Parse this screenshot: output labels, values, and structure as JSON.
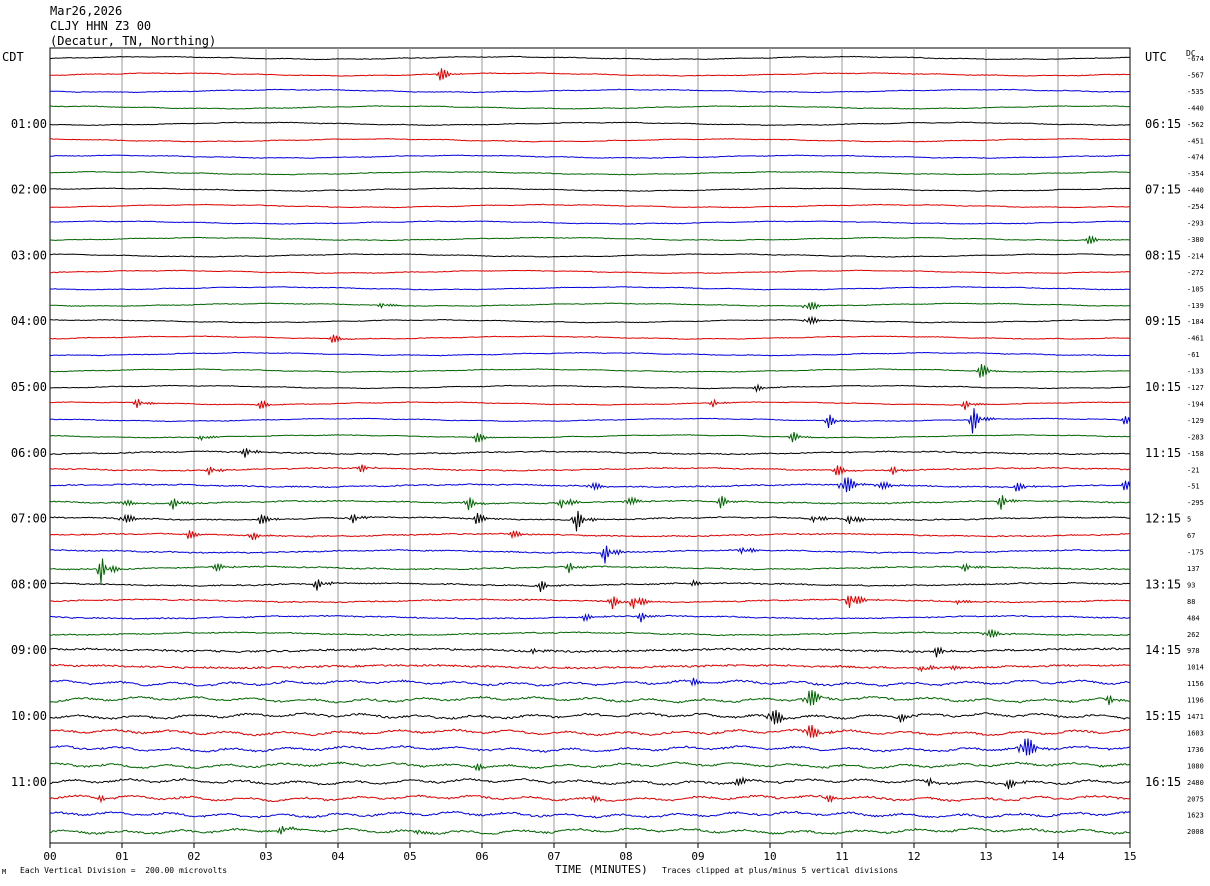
{
  "header": {
    "date": "Mar26,2026",
    "station": "CLJY HHN Z3 00",
    "location": "(Decatur, TN, Northing)"
  },
  "labels": {
    "left_tz": "CDT",
    "right_tz": "UTC",
    "right_col": "DC"
  },
  "colors": {
    "cycle": [
      "#000000",
      "#dd0000",
      "#0000dd",
      "#006400"
    ],
    "grid": "#999999"
  },
  "chart_data": {
    "type": "line",
    "title": "",
    "xlabel": "TIME (MINUTES)",
    "ylabel": "",
    "xlim": [
      0,
      15
    ],
    "x_ticks": [
      "00",
      "01",
      "02",
      "03",
      "04",
      "05",
      "06",
      "07",
      "08",
      "09",
      "10",
      "11",
      "12",
      "13",
      "14",
      "15"
    ],
    "trace_count": 48,
    "left_time_labels": [
      {
        "trace": 4,
        "label": "01:00"
      },
      {
        "trace": 8,
        "label": "02:00"
      },
      {
        "trace": 12,
        "label": "03:00"
      },
      {
        "trace": 16,
        "label": "04:00"
      },
      {
        "trace": 20,
        "label": "05:00"
      },
      {
        "trace": 24,
        "label": "06:00"
      },
      {
        "trace": 28,
        "label": "07:00"
      },
      {
        "trace": 32,
        "label": "08:00"
      },
      {
        "trace": 36,
        "label": "09:00"
      },
      {
        "trace": 40,
        "label": "10:00"
      },
      {
        "trace": 44,
        "label": "11:00"
      }
    ],
    "right_time_labels": [
      {
        "trace": 4,
        "label": "06:15"
      },
      {
        "trace": 8,
        "label": "07:15"
      },
      {
        "trace": 12,
        "label": "08:15"
      },
      {
        "trace": 16,
        "label": "09:15"
      },
      {
        "trace": 20,
        "label": "10:15"
      },
      {
        "trace": 24,
        "label": "11:15"
      },
      {
        "trace": 28,
        "label": "12:15"
      },
      {
        "trace": 32,
        "label": "13:15"
      },
      {
        "trace": 36,
        "label": "14:15"
      },
      {
        "trace": 40,
        "label": "15:15"
      },
      {
        "trace": 44,
        "label": "16:15"
      }
    ],
    "dc_offsets": [
      "-674",
      "-567",
      "-535",
      "-440",
      "-562",
      "-451",
      "-474",
      "-354",
      "-440",
      "-254",
      "-293",
      "-380",
      "-214",
      "-272",
      "-105",
      "-139",
      "-184",
      "-461",
      "-61",
      "-133",
      "-127",
      "-194",
      "-129",
      "-283",
      "-158",
      "-21",
      "-51",
      "-295",
      "5",
      "67",
      "-175",
      "137",
      "93",
      "88",
      "484",
      "262",
      "978",
      "1014",
      "1156",
      "1196",
      "1471",
      "1603",
      "1736",
      "1080",
      "2480",
      "2075",
      "1623",
      "2008"
    ],
    "events": [
      {
        "trace": 1,
        "minute": 5.4,
        "amp": 1.2
      },
      {
        "trace": 11,
        "minute": 14.4,
        "amp": 0.8
      },
      {
        "trace": 15,
        "minute": 4.6,
        "amp": 0.6
      },
      {
        "trace": 15,
        "minute": 10.5,
        "amp": 1.2
      },
      {
        "trace": 16,
        "minute": 10.5,
        "amp": 1.0
      },
      {
        "trace": 17,
        "minute": 3.9,
        "amp": 0.8
      },
      {
        "trace": 19,
        "minute": 12.9,
        "amp": 1.4
      },
      {
        "trace": 20,
        "minute": 9.8,
        "amp": 0.5
      },
      {
        "trace": 21,
        "minute": 1.2,
        "amp": 0.8
      },
      {
        "trace": 21,
        "minute": 2.9,
        "amp": 0.8
      },
      {
        "trace": 21,
        "minute": 9.2,
        "amp": 0.6
      },
      {
        "trace": 21,
        "minute": 12.7,
        "amp": 0.8
      },
      {
        "trace": 22,
        "minute": 10.8,
        "amp": 1.0
      },
      {
        "trace": 22,
        "minute": 12.8,
        "amp": 2.0
      },
      {
        "trace": 22,
        "minute": 14.9,
        "amp": 0.8
      },
      {
        "trace": 23,
        "minute": 2.1,
        "amp": 0.6
      },
      {
        "trace": 23,
        "minute": 5.9,
        "amp": 1.0
      },
      {
        "trace": 23,
        "minute": 10.3,
        "amp": 0.8
      },
      {
        "trace": 24,
        "minute": 2.7,
        "amp": 0.8
      },
      {
        "trace": 25,
        "minute": 2.2,
        "amp": 0.7
      },
      {
        "trace": 25,
        "minute": 4.3,
        "amp": 0.6
      },
      {
        "trace": 25,
        "minute": 10.9,
        "amp": 1.0
      },
      {
        "trace": 25,
        "minute": 11.7,
        "amp": 0.7
      },
      {
        "trace": 26,
        "minute": 7.5,
        "amp": 1.0
      },
      {
        "trace": 26,
        "minute": 11.0,
        "amp": 2.4
      },
      {
        "trace": 26,
        "minute": 11.5,
        "amp": 1.0
      },
      {
        "trace": 26,
        "minute": 13.4,
        "amp": 0.8
      },
      {
        "trace": 26,
        "minute": 14.9,
        "amp": 1.0
      },
      {
        "trace": 27,
        "minute": 1.0,
        "amp": 0.8
      },
      {
        "trace": 27,
        "minute": 1.7,
        "amp": 1.0
      },
      {
        "trace": 27,
        "minute": 5.8,
        "amp": 1.0
      },
      {
        "trace": 27,
        "minute": 7.1,
        "amp": 1.2
      },
      {
        "trace": 27,
        "minute": 8.0,
        "amp": 1.0
      },
      {
        "trace": 27,
        "minute": 9.3,
        "amp": 1.0
      },
      {
        "trace": 27,
        "minute": 13.2,
        "amp": 1.2
      },
      {
        "trace": 28,
        "minute": 1.0,
        "amp": 1.2
      },
      {
        "trace": 28,
        "minute": 2.9,
        "amp": 1.0
      },
      {
        "trace": 28,
        "minute": 4.2,
        "amp": 0.8
      },
      {
        "trace": 28,
        "minute": 5.9,
        "amp": 1.0
      },
      {
        "trace": 28,
        "minute": 7.3,
        "amp": 1.6
      },
      {
        "trace": 28,
        "minute": 10.6,
        "amp": 0.8
      },
      {
        "trace": 28,
        "minute": 11.1,
        "amp": 1.2
      },
      {
        "trace": 29,
        "minute": 1.9,
        "amp": 0.8
      },
      {
        "trace": 29,
        "minute": 2.8,
        "amp": 0.6
      },
      {
        "trace": 29,
        "minute": 6.4,
        "amp": 0.6
      },
      {
        "trace": 30,
        "minute": 7.7,
        "amp": 1.6
      },
      {
        "trace": 30,
        "minute": 9.6,
        "amp": 0.8
      },
      {
        "trace": 31,
        "minute": 0.7,
        "amp": 2.2
      },
      {
        "trace": 31,
        "minute": 2.3,
        "amp": 0.6
      },
      {
        "trace": 31,
        "minute": 7.2,
        "amp": 0.8
      },
      {
        "trace": 31,
        "minute": 12.7,
        "amp": 0.6
      },
      {
        "trace": 32,
        "minute": 3.7,
        "amp": 1.0
      },
      {
        "trace": 32,
        "minute": 6.8,
        "amp": 0.8
      },
      {
        "trace": 32,
        "minute": 8.9,
        "amp": 0.5
      },
      {
        "trace": 33,
        "minute": 7.8,
        "amp": 1.0
      },
      {
        "trace": 33,
        "minute": 8.1,
        "amp": 1.8
      },
      {
        "trace": 33,
        "minute": 11.1,
        "amp": 2.0
      },
      {
        "trace": 33,
        "minute": 12.6,
        "amp": 0.5
      },
      {
        "trace": 34,
        "minute": 7.4,
        "amp": 0.6
      },
      {
        "trace": 34,
        "minute": 8.2,
        "amp": 0.8
      },
      {
        "trace": 35,
        "minute": 13.0,
        "amp": 1.2
      },
      {
        "trace": 36,
        "minute": 6.7,
        "amp": 0.5
      },
      {
        "trace": 36,
        "minute": 12.3,
        "amp": 0.8
      },
      {
        "trace": 37,
        "minute": 12.1,
        "amp": 0.8
      },
      {
        "trace": 37,
        "minute": 12.5,
        "amp": 0.6
      },
      {
        "trace": 38,
        "minute": 8.9,
        "amp": 0.6
      },
      {
        "trace": 39,
        "minute": 10.5,
        "amp": 2.6
      },
      {
        "trace": 39,
        "minute": 14.7,
        "amp": 0.8
      },
      {
        "trace": 40,
        "minute": 10.0,
        "amp": 2.2
      },
      {
        "trace": 40,
        "minute": 11.8,
        "amp": 0.6
      },
      {
        "trace": 41,
        "minute": 10.5,
        "amp": 2.0
      },
      {
        "trace": 42,
        "minute": 13.5,
        "amp": 3.0
      },
      {
        "trace": 43,
        "minute": 5.9,
        "amp": 0.6
      },
      {
        "trace": 44,
        "minute": 9.5,
        "amp": 1.0
      },
      {
        "trace": 44,
        "minute": 12.2,
        "amp": 0.6
      },
      {
        "trace": 44,
        "minute": 13.3,
        "amp": 0.8
      },
      {
        "trace": 45,
        "minute": 0.7,
        "amp": 0.6
      },
      {
        "trace": 45,
        "minute": 7.5,
        "amp": 0.7
      },
      {
        "trace": 45,
        "minute": 10.8,
        "amp": 0.6
      },
      {
        "trace": 47,
        "minute": 3.2,
        "amp": 0.7
      },
      {
        "trace": 47,
        "minute": 5.1,
        "amp": 0.8
      }
    ]
  },
  "footer": {
    "left": "Each Vertical Division =  200.00 microvolts",
    "middle": "TIME (MINUTES)",
    "right": "Traces clipped at plus/minus 5 vertical divisions",
    "mark": "M"
  }
}
